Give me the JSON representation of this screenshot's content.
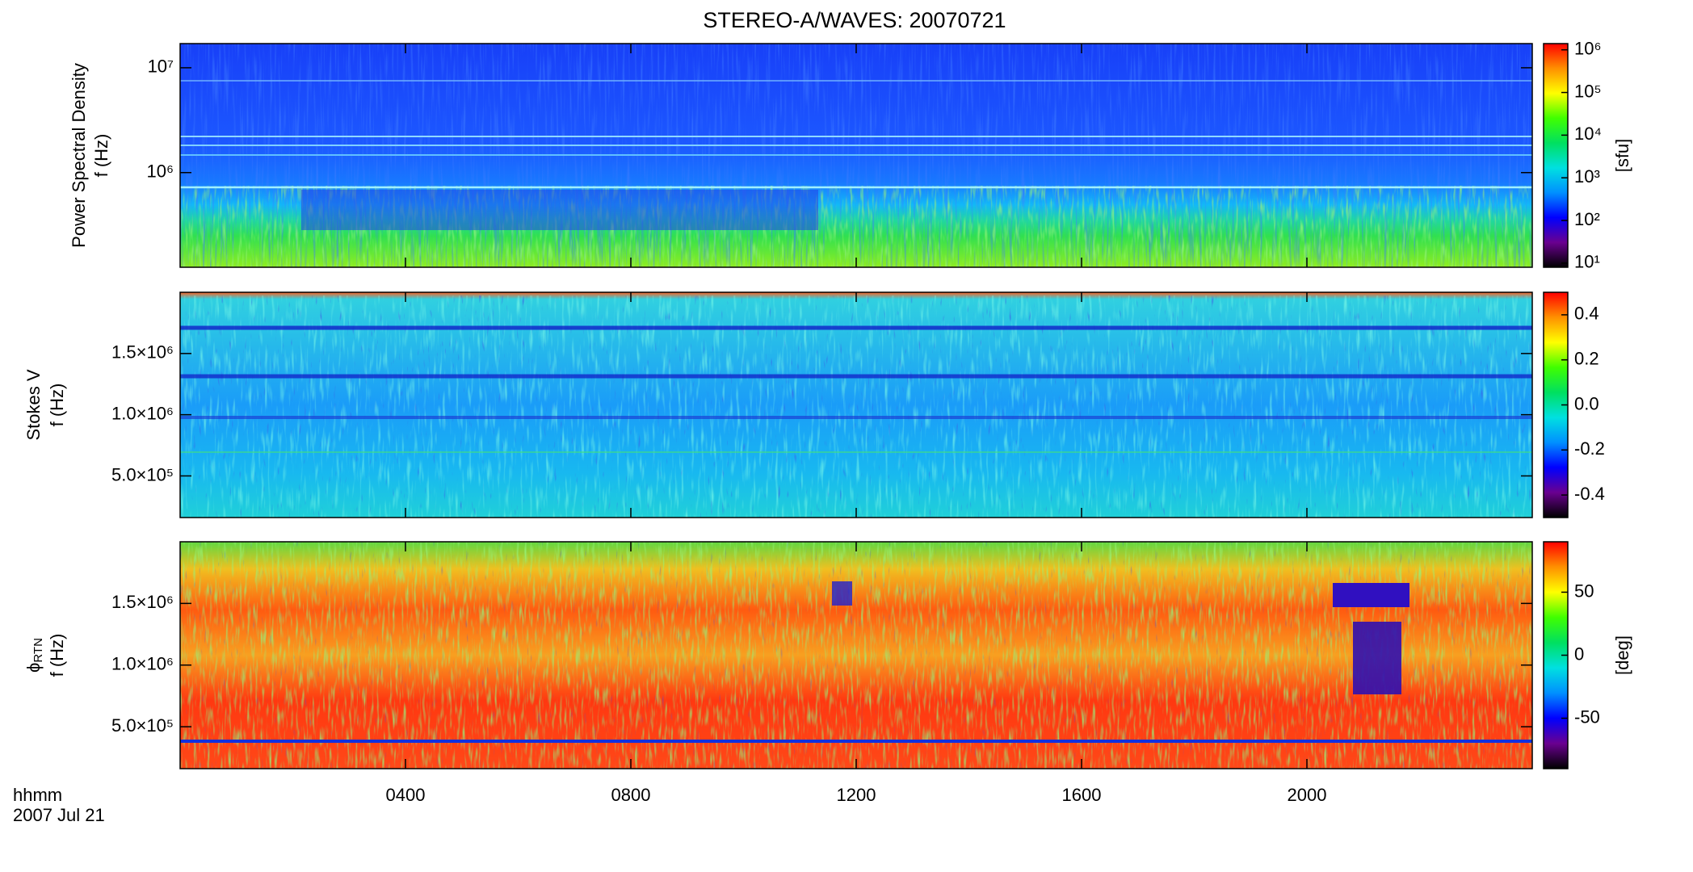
{
  "figure": {
    "title": "STEREO-A/WAVES: 20070721",
    "time_label": "hhmm",
    "date_label": "2007 Jul 21"
  },
  "colormap": [
    "#000000",
    "#6a0090",
    "#0000ff",
    "#0090ff",
    "#00e0e0",
    "#00e060",
    "#40ff00",
    "#ffff00",
    "#ff9000",
    "#ff0000"
  ],
  "chart_data": [
    {
      "type": "heatmap",
      "y_label": [
        "Power Spectral Density",
        "f (Hz)"
      ],
      "log_y": true,
      "ylim": [
        125000,
        17000000
      ],
      "yticks": [
        {
          "value": 1000000,
          "label": "10⁶"
        },
        {
          "value": 10000000,
          "label": "10⁷"
        }
      ],
      "colorbar": {
        "log": true,
        "clim": [
          8,
          1400000
        ],
        "label": "[sfu]",
        "ticks": [
          {
            "value": 10,
            "label": "10¹"
          },
          {
            "value": 100,
            "label": "10²"
          },
          {
            "value": 1000,
            "label": "10³"
          },
          {
            "value": 10000,
            "label": "10⁴"
          },
          {
            "value": 100000,
            "label": "10⁵"
          },
          {
            "value": 1000000,
            "label": "10⁶"
          }
        ]
      }
    },
    {
      "type": "heatmap",
      "y_label": [
        "Stokes V",
        "f (Hz)"
      ],
      "log_y": false,
      "ylim": [
        160000,
        2000000
      ],
      "yticks": [
        {
          "value": 500000,
          "label": "5.0×10⁵"
        },
        {
          "value": 1000000,
          "label": "1.0×10⁶"
        },
        {
          "value": 1500000,
          "label": "1.5×10⁶"
        }
      ],
      "colorbar": {
        "log": false,
        "clim": [
          -0.5,
          0.5
        ],
        "ticks": [
          -0.4,
          -0.2,
          {
            "value": 0,
            "label": "0.0"
          },
          0.2,
          0.4
        ]
      }
    },
    {
      "type": "heatmap",
      "y_label": [
        [
          "ϕ",
          "RTN"
        ],
        "f (Hz)"
      ],
      "log_y": false,
      "ylim": [
        160000,
        2000000
      ],
      "yticks": [
        {
          "value": 500000,
          "label": "5.0×10⁵"
        },
        {
          "value": 1000000,
          "label": "1.0×10⁶"
        },
        {
          "value": 1500000,
          "label": "1.5×10⁶"
        }
      ],
      "xlim": [
        0,
        24
      ],
      "xticks": [
        {
          "value": 4,
          "label": "0400"
        },
        {
          "value": 8,
          "label": "0800"
        },
        {
          "value": 12,
          "label": "1200"
        },
        {
          "value": 16,
          "label": "1600"
        },
        {
          "value": 20,
          "label": "2000"
        }
      ],
      "colorbar": {
        "log": false,
        "clim": [
          -90,
          90
        ],
        "label": "[deg]",
        "ticks": [
          -50,
          0,
          50
        ]
      }
    }
  ]
}
